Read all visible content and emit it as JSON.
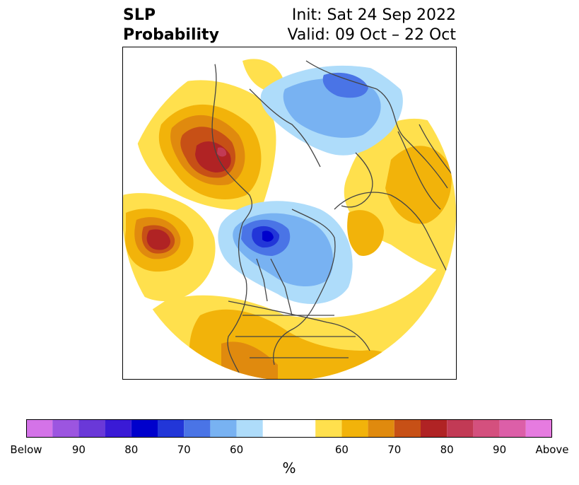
{
  "title": {
    "variable_line1": "SLP",
    "variable_line2": "Probability",
    "init": "Init: Sat 24 Sep 2022",
    "valid": "Valid: 09 Oct – 22 Oct"
  },
  "colorbar": {
    "unit": "%",
    "colors": [
      "#d473e8",
      "#9c55e0",
      "#6a38d8",
      "#3a1ad6",
      "#0000cc",
      "#2236d8",
      "#4a74e6",
      "#78b2f2",
      "#aedcfa",
      "#ffffff",
      "#ffe04d",
      "#f2b30a",
      "#e08a0e",
      "#c75016",
      "#b02324",
      "#c23a55",
      "#d4507e",
      "#dc5fa8",
      "#e67be0"
    ],
    "tick_labels": [
      "Below",
      "90",
      "80",
      "70",
      "60",
      "60",
      "70",
      "80",
      "90",
      "Above"
    ]
  },
  "map": {
    "projection": "polar-stereographic-north",
    "below_color_key": "blue shades = below normal pressure probability",
    "above_color_key": "yellow/red shades = above normal pressure probability"
  }
}
